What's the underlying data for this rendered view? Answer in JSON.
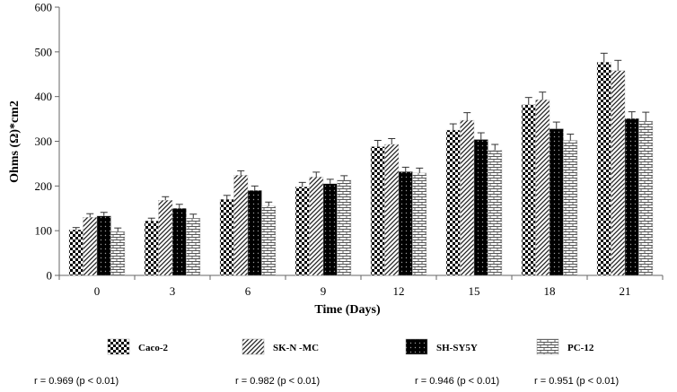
{
  "chart_data": {
    "type": "bar",
    "title": "",
    "xlabel": "Time (Days)",
    "ylabel": "Ohms (Ω)*cm2",
    "ylim": [
      0,
      600
    ],
    "yticks": [
      0,
      100,
      200,
      300,
      400,
      500,
      600
    ],
    "categories": [
      "0",
      "3",
      "6",
      "9",
      "12",
      "15",
      "18",
      "21"
    ],
    "grid": false,
    "legend_position": "bottom",
    "series": [
      {
        "name": "Caco-2",
        "pattern": "checker",
        "values": [
          102,
          122,
          170,
          198,
          288,
          325,
          382,
          477
        ],
        "errors": [
          5,
          6,
          9,
          10,
          14,
          14,
          16,
          20
        ]
      },
      {
        "name": "SK-N -MC",
        "pattern": "diagonal",
        "values": [
          130,
          168,
          224,
          220,
          293,
          347,
          393,
          458
        ],
        "errors": [
          8,
          8,
          10,
          11,
          13,
          17,
          17,
          23
        ]
      },
      {
        "name": "SH-SY5Y",
        "pattern": "dotted-black",
        "values": [
          133,
          150,
          190,
          205,
          232,
          304,
          328,
          351
        ],
        "errors": [
          8,
          9,
          10,
          10,
          10,
          15,
          15,
          15
        ]
      },
      {
        "name": "PC-12",
        "pattern": "brick",
        "values": [
          98,
          128,
          155,
          213,
          229,
          280,
          302,
          345
        ],
        "errors": [
          8,
          9,
          9,
          10,
          11,
          13,
          14,
          20
        ]
      }
    ],
    "correlations": [
      "r = 0.969 (p < 0.01)",
      "r = 0.982 (p < 0.01)",
      "r = 0.946 (p < 0.01)",
      "r = 0.951 (p < 0.01)"
    ]
  }
}
